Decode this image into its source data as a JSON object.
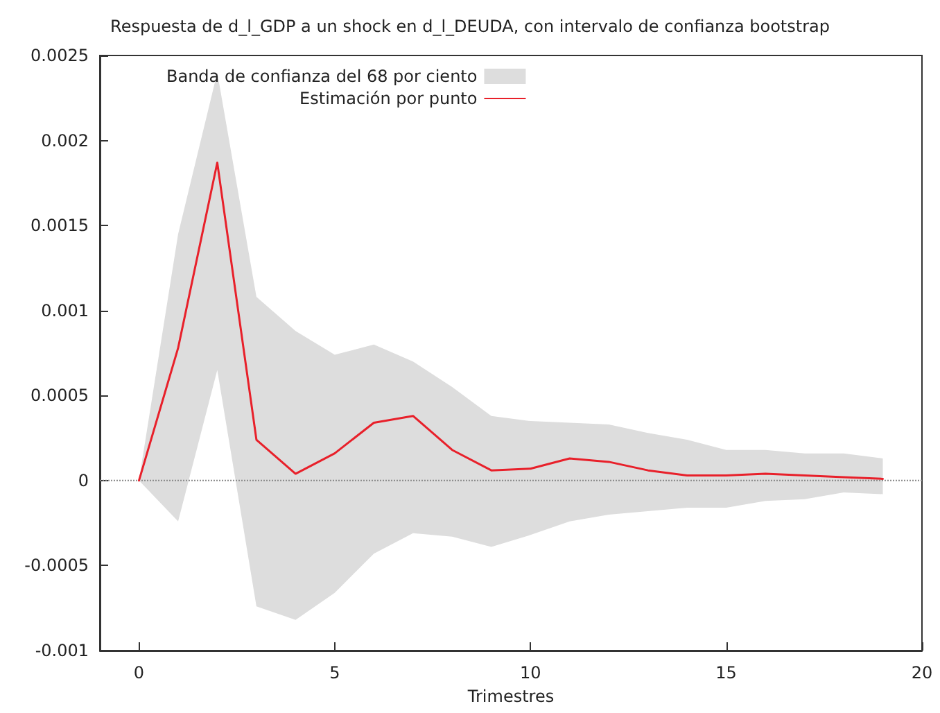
{
  "chart_data": {
    "type": "line",
    "title": "Respuesta de d_l_GDP a un shock en d_l_DEUDA, con intervalo de confianza bootstrap",
    "xlabel": "Trimestres",
    "x": [
      0,
      1,
      2,
      3,
      4,
      5,
      6,
      7,
      8,
      9,
      10,
      11,
      12,
      13,
      14,
      15,
      16,
      17,
      18,
      19
    ],
    "series": [
      {
        "name": "Banda de confianza del 68 por ciento",
        "type": "area",
        "color": "#dddddd",
        "values": [
          null,
          null,
          null,
          null,
          null,
          null,
          null,
          null,
          null,
          null,
          null,
          null,
          null,
          null,
          null,
          null,
          null,
          null,
          null,
          null
        ],
        "lower": [
          0,
          -0.00024,
          0.00065,
          -0.00074,
          -0.00082,
          -0.00066,
          -0.00043,
          -0.00031,
          -0.00033,
          -0.00039,
          -0.00032,
          -0.00024,
          -0.0002,
          -0.00018,
          -0.00016,
          -0.00016,
          -0.00012,
          -0.00011,
          -7e-05,
          -8e-05
        ],
        "upper": [
          0,
          0.00145,
          0.0024,
          0.00108,
          0.00088,
          0.00074,
          0.0008,
          0.0007,
          0.00055,
          0.00038,
          0.00035,
          0.00034,
          0.00033,
          0.00028,
          0.00024,
          0.00018,
          0.00018,
          0.00016,
          0.00016,
          0.00013
        ]
      },
      {
        "name": "Estimación por punto",
        "color": "#e8202a",
        "values": [
          0,
          0.00078,
          0.00187,
          0.00024,
          4e-05,
          0.00016,
          0.00034,
          0.00038,
          0.00018,
          6e-05,
          7e-05,
          0.00013,
          0.00011,
          6e-05,
          3e-05,
          3e-05,
          4e-05,
          3e-05,
          2e-05,
          1e-05
        ]
      }
    ],
    "xlim": [
      -1,
      20
    ],
    "xticks": [
      0,
      5,
      10,
      15,
      20
    ],
    "ylim": [
      -0.001,
      0.0025
    ],
    "yticks": [
      -0.001,
      -0.0005,
      0,
      0.0005,
      0.001,
      0.0015,
      0.002,
      0.0025
    ],
    "ref_lines": [
      {
        "axis": "y",
        "value": 0,
        "color": "#888888",
        "line_style": "dotted"
      }
    ],
    "grid": false,
    "legend": "top left",
    "marker": "none",
    "line_style": "solid"
  }
}
